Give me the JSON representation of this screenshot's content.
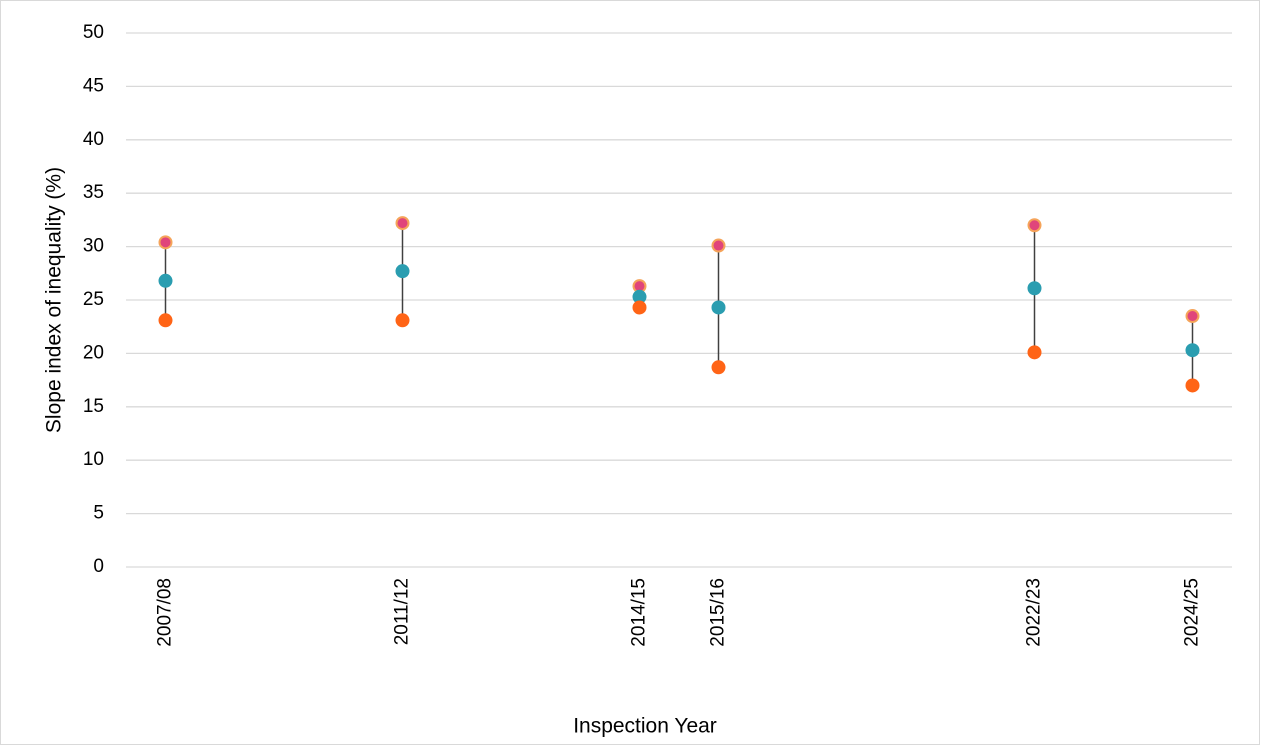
{
  "chart_data": {
    "type": "dot-range",
    "x_label": "Inspection Year",
    "y_label": "Slope index of inequality (%)",
    "categories": [
      "2007/08",
      null,
      null,
      "2011/12",
      null,
      null,
      "2014/15",
      "2015/16",
      null,
      null,
      null,
      "2022/23",
      null,
      "2024/25"
    ],
    "series": [
      {
        "color": "#e0457b",
        "edge_color": "#f5a45a",
        "values": [
          30.4,
          null,
          null,
          32.2,
          null,
          null,
          26.3,
          30.1,
          null,
          null,
          null,
          32.0,
          null,
          23.5
        ]
      },
      {
        "color": "#2a9db0",
        "values": [
          26.8,
          null,
          null,
          27.7,
          null,
          null,
          25.3,
          24.3,
          null,
          null,
          null,
          26.1,
          null,
          20.3
        ]
      },
      {
        "color": "#ff6416",
        "values": [
          23.1,
          null,
          null,
          23.1,
          null,
          null,
          24.3,
          18.7,
          null,
          null,
          null,
          20.1,
          null,
          17.0
        ]
      }
    ],
    "range_line_color": "#404040",
    "ylim": [
      0,
      50
    ],
    "yticks": [
      0,
      5,
      10,
      15,
      20,
      25,
      30,
      35,
      40,
      45,
      50
    ],
    "grid": true
  }
}
